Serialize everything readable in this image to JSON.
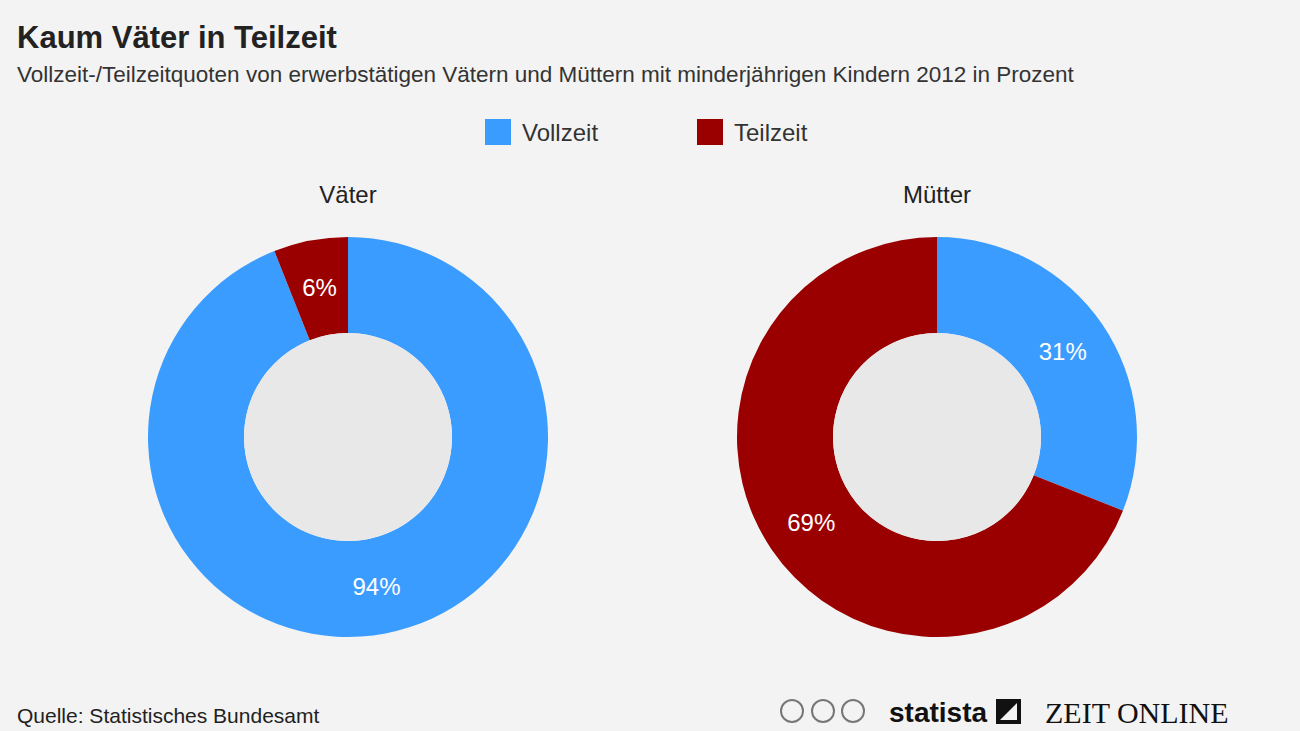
{
  "header": {
    "title": "Kaum Väter in Teilzeit",
    "subtitle": "Vollzeit-/Teilzeitquoten von erwerbstätigen Vätern und Müttern mit minderjährigen Kindern 2012 in Prozent"
  },
  "chart_data": [
    {
      "type": "pie",
      "title": "Väter",
      "categories": [
        "Vollzeit",
        "Teilzeit"
      ],
      "values": [
        94,
        6
      ],
      "value_labels": [
        "94%",
        "6%"
      ],
      "colors": [
        "#3a9cff",
        "#9b0000"
      ],
      "data_labels": true
    },
    {
      "type": "pie",
      "title": "Mütter",
      "categories": [
        "Vollzeit",
        "Teilzeit"
      ],
      "values": [
        31,
        69
      ],
      "value_labels": [
        "31%",
        "69%"
      ],
      "colors": [
        "#3a9cff",
        "#9b0000"
      ],
      "data_labels": true
    }
  ],
  "footer": {
    "source": "Quelle: Statistisches Bundesamt",
    "brands": [
      "statista",
      "ZEIT ONLINE"
    ]
  }
}
